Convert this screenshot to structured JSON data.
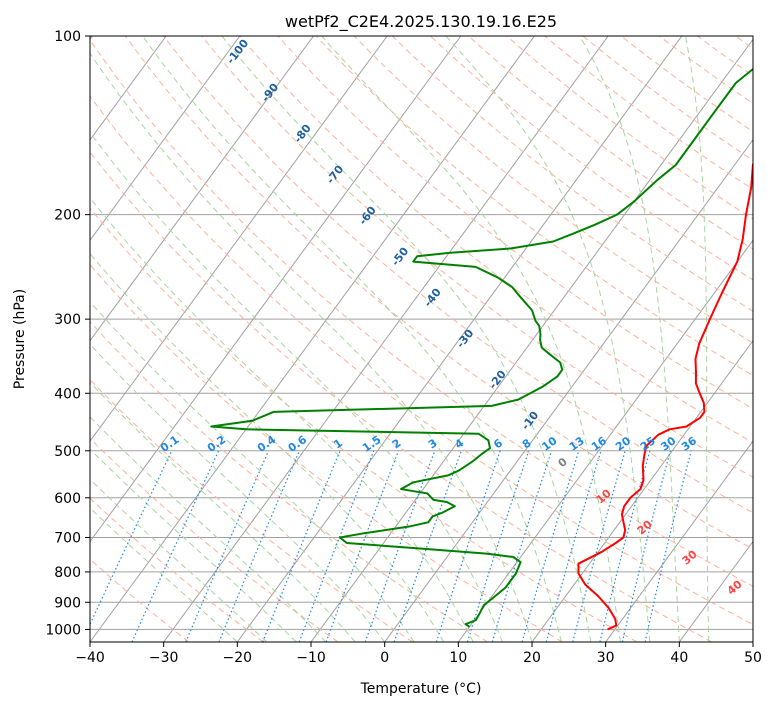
{
  "chart_data": {
    "type": "line",
    "title": "wetPf2_C2E4.2025.130.19.16.E25",
    "xlabel": "Temperature (°C)",
    "ylabel": "Pressure (hPa)",
    "xlim": [
      -40,
      50
    ],
    "ylim": [
      1050,
      100
    ],
    "y_scale": "log",
    "grid": true,
    "x_ticks": [
      -40,
      -30,
      -20,
      -10,
      0,
      10,
      20,
      30,
      40,
      50
    ],
    "y_ticks": [
      100,
      200,
      300,
      400,
      500,
      600,
      700,
      800,
      900,
      1000
    ],
    "colors": {
      "temperature": "#ff0000",
      "dewpoint": "#008000",
      "isotherm": "#a0a0a0",
      "dry_adiabat": "#ffb09a",
      "moist_adiabat": "#a8d5a0",
      "mixing_ratio": "#1e88e5",
      "isotherm_label": "#1f5f9f",
      "moist_label": "#ff4444"
    },
    "series": [
      {
        "key": "temperature",
        "points": [
          [
            29,
            1000
          ],
          [
            29.8,
            985
          ],
          [
            29,
            960
          ],
          [
            27,
            920
          ],
          [
            24.5,
            880
          ],
          [
            21.5,
            840
          ],
          [
            19.5,
            805
          ],
          [
            18.5,
            775
          ],
          [
            20.5,
            740
          ],
          [
            21.5,
            715
          ],
          [
            22,
            700
          ],
          [
            21.5,
            680
          ],
          [
            20.5,
            660
          ],
          [
            19.5,
            640
          ],
          [
            19,
            620
          ],
          [
            19,
            600
          ],
          [
            19.5,
            580
          ],
          [
            19,
            560
          ],
          [
            17.5,
            530
          ],
          [
            16.5,
            505
          ],
          [
            16,
            490
          ],
          [
            16.5,
            470
          ],
          [
            17.5,
            460
          ],
          [
            19.5,
            455
          ],
          [
            20.5,
            440
          ],
          [
            20.5,
            430
          ],
          [
            19.5,
            415
          ],
          [
            18,
            400
          ],
          [
            16.5,
            385
          ],
          [
            15.5,
            370
          ],
          [
            14,
            350
          ],
          [
            13,
            330
          ],
          [
            12,
            300
          ],
          [
            11,
            270
          ],
          [
            10,
            240
          ],
          [
            8.5,
            220
          ],
          [
            6.5,
            200
          ],
          [
            4.5,
            180
          ],
          [
            2.5,
            165
          ],
          [
            1.5,
            155
          ],
          [
            1.5,
            150
          ],
          [
            2.5,
            140
          ],
          [
            3.5,
            135
          ],
          [
            4,
            130
          ],
          [
            4,
            120
          ],
          [
            4,
            110
          ],
          [
            4.5,
            100
          ]
        ]
      },
      {
        "key": "dewpoint",
        "points": [
          [
            10,
            990
          ],
          [
            9.2,
            980
          ],
          [
            10.2,
            965
          ],
          [
            10,
            935
          ],
          [
            9.8,
            910
          ],
          [
            10.4,
            880
          ],
          [
            11,
            850
          ],
          [
            11,
            805
          ],
          [
            10.5,
            770
          ],
          [
            9,
            755
          ],
          [
            5,
            745
          ],
          [
            -5,
            730
          ],
          [
            -15,
            715
          ],
          [
            -16.5,
            700
          ],
          [
            -14,
            690
          ],
          [
            -8,
            670
          ],
          [
            -6,
            660
          ],
          [
            -6,
            645
          ],
          [
            -5,
            635
          ],
          [
            -4,
            620
          ],
          [
            -5.5,
            610
          ],
          [
            -7.5,
            605
          ],
          [
            -9,
            590
          ],
          [
            -11,
            585
          ],
          [
            -13,
            580
          ],
          [
            -12,
            565
          ],
          [
            -8,
            550
          ],
          [
            -7,
            540
          ],
          [
            -6,
            520
          ],
          [
            -5.5,
            505
          ],
          [
            -5,
            495
          ],
          [
            -6,
            480
          ],
          [
            -8,
            468
          ],
          [
            -40,
            460
          ],
          [
            -45,
            455
          ],
          [
            -40,
            445
          ],
          [
            -38,
            430
          ],
          [
            -9,
            420
          ],
          [
            -6,
            410
          ],
          [
            -5,
            400
          ],
          [
            -4,
            390
          ],
          [
            -3,
            375
          ],
          [
            -3,
            365
          ],
          [
            -4,
            355
          ],
          [
            -6,
            345
          ],
          [
            -8,
            335
          ],
          [
            -9,
            325
          ],
          [
            -9.5,
            318
          ],
          [
            -10.5,
            308
          ],
          [
            -11.5,
            302
          ],
          [
            -13,
            290
          ],
          [
            -16,
            275
          ],
          [
            -18,
            265
          ],
          [
            -21,
            255
          ],
          [
            -25,
            245
          ],
          [
            -34,
            240
          ],
          [
            -34,
            235
          ],
          [
            -30,
            232
          ],
          [
            -22,
            228
          ],
          [
            -17,
            222
          ],
          [
            -15,
            215
          ],
          [
            -13,
            208
          ],
          [
            -11,
            200
          ],
          [
            -10,
            190
          ],
          [
            -9,
            175
          ],
          [
            -8,
            165
          ],
          [
            -8,
            150
          ],
          [
            -8,
            140
          ],
          [
            -8,
            130
          ],
          [
            -8,
            125
          ],
          [
            -8,
            120
          ],
          [
            -6.5,
            110
          ],
          [
            -3,
            100
          ]
        ]
      }
    ],
    "isotherm_labels": [
      "-100",
      "-90",
      "-80",
      "-70",
      "-60",
      "-50",
      "-40",
      "-30",
      "-20",
      "-10"
    ],
    "mixing_ratio_labels": [
      "0.1",
      "0.2",
      "0.4",
      "0.6",
      "1",
      "1.5",
      "2",
      "3",
      "4",
      "6",
      "8",
      "10",
      "13",
      "16",
      "20",
      "25",
      "30",
      "36"
    ],
    "moist_labels": [
      "0",
      "10",
      "20",
      "30",
      "40"
    ]
  }
}
